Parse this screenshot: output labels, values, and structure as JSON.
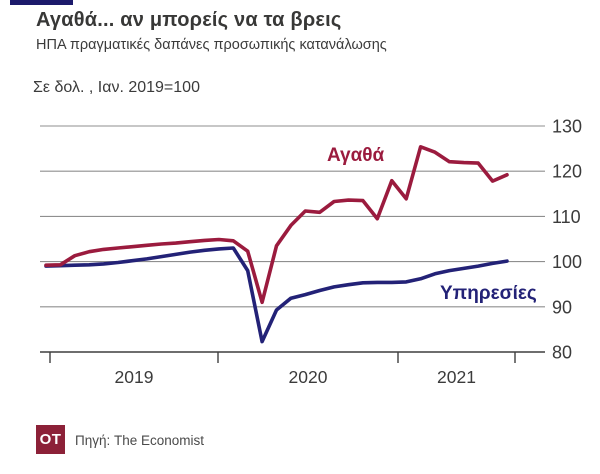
{
  "title": "Αγαθά... αν μπορείς να τα βρεις",
  "subtitle": "ΗΠΑ πραγματικές δαπάνες προσωπικής κατανάλωσης",
  "units_label": "Σε δολ. , Ιαν. 2019=100",
  "accent_color": "#1c1a6b",
  "chart_data": {
    "type": "line",
    "title": "Αγαθά... αν μπορείς να τα βρεις",
    "subtitle": "ΗΠΑ πραγματικές δαπάνες προσωπικής κατανάλωσης",
    "units": "Σε δολ. , Ιαν. 2019=100",
    "grid": true,
    "legend_position": "inline-labels",
    "ylim": [
      80,
      130
    ],
    "yticks": [
      80,
      90,
      100,
      110,
      120,
      130
    ],
    "xticks": [
      "2019",
      "2020",
      "2021"
    ],
    "grid_color": "#8f8f8f",
    "axis_color": "#3f3f3f",
    "text_color": "#3b3b3b",
    "months": [
      "2019-01",
      "2019-02",
      "2019-03",
      "2019-04",
      "2019-05",
      "2019-06",
      "2019-07",
      "2019-08",
      "2019-09",
      "2019-10",
      "2019-11",
      "2019-12",
      "2020-01",
      "2020-02",
      "2020-03",
      "2020-04",
      "2020-05",
      "2020-06",
      "2020-07",
      "2020-08",
      "2020-09",
      "2020-10",
      "2020-11",
      "2020-12",
      "2021-01",
      "2021-02",
      "2021-03",
      "2021-04",
      "2021-05",
      "2021-06",
      "2021-07",
      "2021-08",
      "2021-09"
    ],
    "series": [
      {
        "id": "goods",
        "name": "Αγαθά",
        "color": "#9b1b3e",
        "values": [
          99.2,
          99.3,
          101.3,
          102.2,
          102.7,
          103.0,
          103.3,
          103.6,
          103.9,
          104.1,
          104.4,
          104.7,
          104.9,
          104.6,
          102.3,
          91.0,
          103.5,
          108.0,
          111.2,
          110.9,
          113.3,
          113.6,
          113.5,
          109.5,
          117.9,
          113.9,
          125.4,
          124.2,
          122.1,
          121.9,
          121.8,
          117.8,
          119.2
        ]
      },
      {
        "id": "services",
        "name": "Υπηρεσίες",
        "color": "#232277",
        "values": [
          99.0,
          99.1,
          99.2,
          99.3,
          99.5,
          99.8,
          100.2,
          100.6,
          101.1,
          101.6,
          102.1,
          102.5,
          102.8,
          103.0,
          98.0,
          82.3,
          89.3,
          91.9,
          92.7,
          93.6,
          94.4,
          94.9,
          95.3,
          95.4,
          95.4,
          95.5,
          96.2,
          97.3,
          98.0,
          98.5,
          99.0,
          99.6,
          100.1
        ]
      }
    ]
  },
  "footer": {
    "logo_text": "OT",
    "logo_color": "#8c2138",
    "source": "Πηγή: The Economist"
  }
}
